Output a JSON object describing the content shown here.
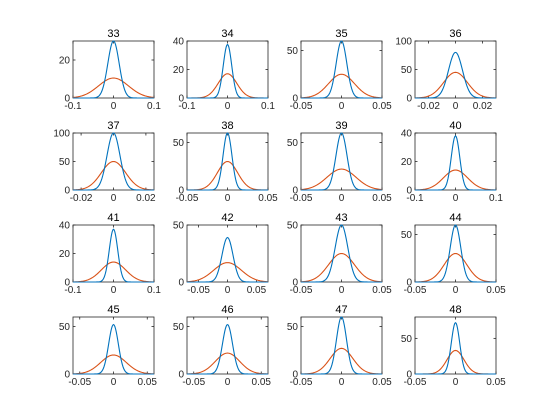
{
  "chart_data": {
    "type": "line",
    "layout": "4x4-grid",
    "colors": {
      "narrow": "#0072BD",
      "wide": "#D95319",
      "axes": "#262626",
      "background": "#ffffff"
    },
    "panels": [
      {
        "title": "33",
        "xlim": [
          -0.1,
          0.1
        ],
        "ylim": [
          0,
          30
        ],
        "xticks": [
          -0.1,
          0,
          0.1
        ],
        "xtick_labels": [
          "-0.1",
          "0",
          "0.1"
        ],
        "yticks": [
          0,
          20
        ],
        "ytick_labels": [
          "0",
          "20"
        ],
        "series": [
          {
            "color": "#0072BD",
            "peak": 30,
            "sigma": 0.014
          },
          {
            "color": "#D95319",
            "peak": 10.5,
            "sigma": 0.037
          }
        ]
      },
      {
        "title": "34",
        "xlim": [
          -0.1,
          0.1
        ],
        "ylim": [
          0,
          40
        ],
        "xticks": [
          -0.1,
          0,
          0.1
        ],
        "xtick_labels": [
          "-0.1",
          "0",
          "0.1"
        ],
        "yticks": [
          0,
          20,
          40
        ],
        "ytick_labels": [
          "0",
          "20",
          "40"
        ],
        "series": [
          {
            "color": "#0072BD",
            "peak": 37.5,
            "sigma": 0.0105
          },
          {
            "color": "#D95319",
            "peak": 17,
            "sigma": 0.023
          }
        ]
      },
      {
        "title": "35",
        "xlim": [
          -0.05,
          0.05
        ],
        "ylim": [
          0,
          60
        ],
        "xticks": [
          -0.05,
          0,
          0.05
        ],
        "xtick_labels": [
          "-0.05",
          "0",
          "0.05"
        ],
        "yticks": [
          0,
          50
        ],
        "ytick_labels": [
          "0",
          "50"
        ],
        "series": [
          {
            "color": "#0072BD",
            "peak": 60,
            "sigma": 0.0066
          },
          {
            "color": "#D95319",
            "peak": 25,
            "sigma": 0.016
          }
        ]
      },
      {
        "title": "36",
        "xlim": [
          -0.03,
          0.03
        ],
        "ylim": [
          0,
          100
        ],
        "xticks": [
          -0.02,
          0,
          0.02
        ],
        "xtick_labels": [
          "-0.02",
          "0",
          "0.02"
        ],
        "yticks": [
          0,
          50,
          100
        ],
        "ytick_labels": [
          "0",
          "50",
          "100"
        ],
        "series": [
          {
            "color": "#0072BD",
            "peak": 80,
            "sigma": 0.0052
          },
          {
            "color": "#D95319",
            "peak": 45,
            "sigma": 0.0088
          }
        ]
      },
      {
        "title": "37",
        "xlim": [
          -0.025,
          0.025
        ],
        "ylim": [
          0,
          100
        ],
        "xticks": [
          -0.02,
          0,
          0.02
        ],
        "xtick_labels": [
          "-0.02",
          "0",
          "0.02"
        ],
        "yticks": [
          0,
          50,
          100
        ],
        "ytick_labels": [
          "0",
          "50",
          "100"
        ],
        "series": [
          {
            "color": "#0072BD",
            "peak": 100,
            "sigma": 0.004
          },
          {
            "color": "#D95319",
            "peak": 50,
            "sigma": 0.0075
          }
        ]
      },
      {
        "title": "38",
        "xlim": [
          -0.05,
          0.05
        ],
        "ylim": [
          0,
          60
        ],
        "xticks": [
          -0.05,
          0,
          0.05
        ],
        "xtick_labels": [
          "-0.05",
          "0",
          "0.05"
        ],
        "yticks": [
          0,
          50
        ],
        "ytick_labels": [
          "0",
          "50"
        ],
        "series": [
          {
            "color": "#0072BD",
            "peak": 60,
            "sigma": 0.0055
          },
          {
            "color": "#D95319",
            "peak": 30,
            "sigma": 0.0125
          }
        ]
      },
      {
        "title": "39",
        "xlim": [
          -0.05,
          0.05
        ],
        "ylim": [
          0,
          60
        ],
        "xticks": [
          -0.05,
          0,
          0.05
        ],
        "xtick_labels": [
          "-0.05",
          "0",
          "0.05"
        ],
        "yticks": [
          0,
          50
        ],
        "ytick_labels": [
          "0",
          "50"
        ],
        "series": [
          {
            "color": "#0072BD",
            "peak": 60,
            "sigma": 0.0068
          },
          {
            "color": "#D95319",
            "peak": 22,
            "sigma": 0.018
          }
        ]
      },
      {
        "title": "40",
        "xlim": [
          -0.1,
          0.1
        ],
        "ylim": [
          0,
          40
        ],
        "xticks": [
          -0.1,
          0,
          0.1
        ],
        "xtick_labels": [
          "-0.1",
          "0",
          "0.1"
        ],
        "yticks": [
          0,
          20,
          40
        ],
        "ytick_labels": [
          "0",
          "20",
          "40"
        ],
        "series": [
          {
            "color": "#0072BD",
            "peak": 38,
            "sigma": 0.0105
          },
          {
            "color": "#D95319",
            "peak": 14,
            "sigma": 0.03
          }
        ]
      },
      {
        "title": "41",
        "xlim": [
          -0.1,
          0.1
        ],
        "ylim": [
          0,
          40
        ],
        "xticks": [
          -0.1,
          0,
          0.1
        ],
        "xtick_labels": [
          "-0.1",
          "0",
          "0.1"
        ],
        "yticks": [
          0,
          20,
          40
        ],
        "ytick_labels": [
          "0",
          "20",
          "40"
        ],
        "series": [
          {
            "color": "#0072BD",
            "peak": 37,
            "sigma": 0.0105
          },
          {
            "color": "#D95319",
            "peak": 14,
            "sigma": 0.03
          }
        ]
      },
      {
        "title": "42",
        "xlim": [
          -0.07,
          0.07
        ],
        "ylim": [
          0,
          50
        ],
        "xticks": [
          -0.05,
          0,
          0.05
        ],
        "xtick_labels": [
          "-0.05",
          "0",
          "0.05"
        ],
        "yticks": [
          0,
          50
        ],
        "ytick_labels": [
          "0",
          "50"
        ],
        "series": [
          {
            "color": "#0072BD",
            "peak": 39,
            "sigma": 0.0095
          },
          {
            "color": "#D95319",
            "peak": 17,
            "sigma": 0.024
          }
        ]
      },
      {
        "title": "43",
        "xlim": [
          -0.05,
          0.05
        ],
        "ylim": [
          0,
          50
        ],
        "xticks": [
          -0.05,
          0,
          0.05
        ],
        "xtick_labels": [
          "-0.05",
          "0",
          "0.05"
        ],
        "yticks": [
          0,
          50
        ],
        "ytick_labels": [
          "0",
          "50"
        ],
        "series": [
          {
            "color": "#0072BD",
            "peak": 50,
            "sigma": 0.0078
          },
          {
            "color": "#D95319",
            "peak": 25,
            "sigma": 0.016
          }
        ]
      },
      {
        "title": "44",
        "xlim": [
          -0.05,
          0.05
        ],
        "ylim": [
          0,
          60
        ],
        "xticks": [
          -0.05,
          0,
          0.05
        ],
        "xtick_labels": [
          "-0.05",
          "0",
          "0.05"
        ],
        "yticks": [
          0,
          50
        ],
        "ytick_labels": [
          "0",
          "50"
        ],
        "series": [
          {
            "color": "#0072BD",
            "peak": 60,
            "sigma": 0.0065
          },
          {
            "color": "#D95319",
            "peak": 30,
            "sigma": 0.014
          }
        ]
      },
      {
        "title": "45",
        "xlim": [
          -0.06,
          0.06
        ],
        "ylim": [
          0,
          60
        ],
        "xticks": [
          -0.05,
          0,
          0.05
        ],
        "xtick_labels": [
          "-0.05",
          "0",
          "0.05"
        ],
        "yticks": [
          0,
          50
        ],
        "ytick_labels": [
          "0",
          "50"
        ],
        "series": [
          {
            "color": "#0072BD",
            "peak": 52,
            "sigma": 0.0072
          },
          {
            "color": "#D95319",
            "peak": 20,
            "sigma": 0.019
          }
        ]
      },
      {
        "title": "46",
        "xlim": [
          -0.06,
          0.06
        ],
        "ylim": [
          0,
          60
        ],
        "xticks": [
          -0.05,
          0,
          0.05
        ],
        "xtick_labels": [
          "-0.05",
          "0",
          "0.05"
        ],
        "yticks": [
          0,
          50
        ],
        "ytick_labels": [
          "0",
          "50"
        ],
        "series": [
          {
            "color": "#0072BD",
            "peak": 52,
            "sigma": 0.0075
          },
          {
            "color": "#D95319",
            "peak": 22,
            "sigma": 0.018
          }
        ]
      },
      {
        "title": "47",
        "xlim": [
          -0.05,
          0.05
        ],
        "ylim": [
          0,
          60
        ],
        "xticks": [
          -0.05,
          0,
          0.05
        ],
        "xtick_labels": [
          "-0.05",
          "0",
          "0.05"
        ],
        "yticks": [
          0,
          50
        ],
        "ytick_labels": [
          "0",
          "50"
        ],
        "series": [
          {
            "color": "#0072BD",
            "peak": 60,
            "sigma": 0.0062
          },
          {
            "color": "#D95319",
            "peak": 27,
            "sigma": 0.014
          }
        ]
      },
      {
        "title": "48",
        "xlim": [
          -0.05,
          0.05
        ],
        "ylim": [
          0,
          80
        ],
        "xticks": [
          -0.05,
          0,
          0.05
        ],
        "xtick_labels": [
          "-0.05",
          "0",
          "0.05"
        ],
        "yticks": [
          0,
          50
        ],
        "ytick_labels": [
          "0",
          "50"
        ],
        "series": [
          {
            "color": "#0072BD",
            "peak": 72,
            "sigma": 0.0052
          },
          {
            "color": "#D95319",
            "peak": 33,
            "sigma": 0.0105
          }
        ]
      }
    ]
  }
}
